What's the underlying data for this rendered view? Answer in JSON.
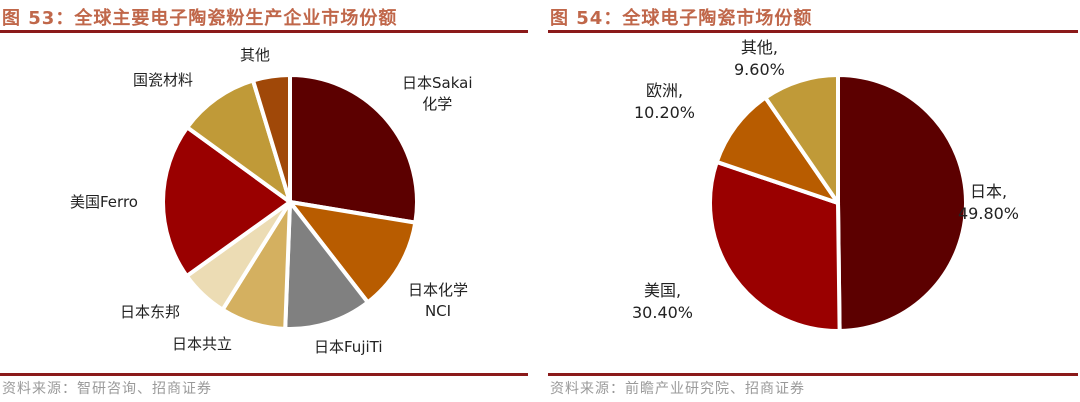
{
  "left": {
    "title": "图 53：全球主要电子陶瓷粉生产企业市场份额",
    "source": "资料来源：智研咨询、招商证券",
    "labels": {
      "sakai_1": "日本Sakai",
      "sakai_2": "化学",
      "nci_1": "日本化学",
      "nci_2": "NCI",
      "fujiti": "日本FujiTi",
      "kyoritsu": "日本共立",
      "toho": "日本东邦",
      "ferro": "美国Ferro",
      "guoci": "国瓷材料",
      "other": "其他"
    }
  },
  "right": {
    "title": "图 54：全球电子陶瓷市场份额",
    "source": "资料来源：前瞻产业研究院、招商证券",
    "labels": {
      "japan_1": "日本,",
      "japan_2": "49.80%",
      "usa_1": "美国,",
      "usa_2": "30.40%",
      "europe_1": "欧洲,",
      "europe_2": "10.20%",
      "other_1": "其他,",
      "other_2": "9.60%"
    }
  },
  "chart_data": [
    {
      "type": "pie",
      "title": "图 53：全球主要电子陶瓷粉生产企业市场份额",
      "note": "values estimated from slice angles (no data labels shown)",
      "categories": [
        "日本Sakai化学",
        "日本化学NCI",
        "日本FujiTi",
        "日本共立",
        "日本东邦",
        "美国Ferro",
        "国瓷材料",
        "其他"
      ],
      "values": [
        27.6,
        11.9,
        11.1,
        8.3,
        6.2,
        19.9,
        10.3,
        4.7
      ],
      "colors": [
        "#5c0000",
        "#b85c00",
        "#808080",
        "#d4b060",
        "#ecdcb4",
        "#9a0000",
        "#c09a38",
        "#a04808"
      ],
      "start_angle": "12 o'clock, clockwise"
    },
    {
      "type": "pie",
      "title": "图 54：全球电子陶瓷市场份额",
      "categories": [
        "日本",
        "美国",
        "欧洲",
        "其他"
      ],
      "values": [
        49.8,
        30.4,
        10.2,
        9.6
      ],
      "colors": [
        "#5c0000",
        "#9a0000",
        "#b85c00",
        "#c09a38"
      ],
      "start_angle": "12 o'clock, clockwise"
    }
  ]
}
